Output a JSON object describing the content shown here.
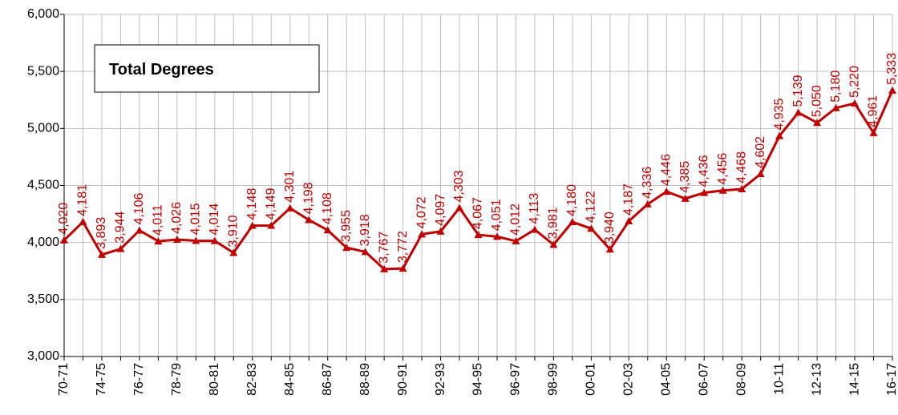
{
  "chart_data": {
    "type": "line",
    "title": "Total Degrees",
    "categories": [
      "70-71",
      null,
      "74-75",
      null,
      "76-77",
      null,
      "78-79",
      null,
      "80-81",
      null,
      "82-83",
      null,
      "84-85",
      null,
      "86-87",
      null,
      "88-89",
      null,
      "90-91",
      null,
      "92-93",
      null,
      "94-95",
      null,
      "96-97",
      null,
      "98-99",
      null,
      "00-01",
      null,
      "02-03",
      null,
      "04-05",
      null,
      "06-07",
      null,
      "08-09",
      null,
      "10-11",
      null,
      "12-13",
      null,
      "14-15",
      null,
      "16-17"
    ],
    "series": [
      {
        "name": "Total Degrees",
        "color": "#c00000",
        "values": [
          4020,
          4181,
          3893,
          3944,
          4106,
          4011,
          4026,
          4015,
          4014,
          3910,
          4148,
          4149,
          4301,
          4198,
          4108,
          3955,
          3918,
          3767,
          3772,
          4072,
          4097,
          4303,
          4067,
          4051,
          4012,
          4113,
          3981,
          4180,
          4122,
          3940,
          4187,
          4336,
          4446,
          4385,
          4436,
          4456,
          4468,
          4602,
          4935,
          5139,
          5050,
          5180,
          5220,
          4961,
          5333
        ],
        "value_labels": [
          "4,020",
          "4,181",
          "3,893",
          "3,944",
          "4,106",
          "4,011",
          "4,026",
          "4,015",
          "4,014",
          "3,910",
          "4,148",
          "4,149",
          "4,301",
          "4,198",
          "4,108",
          "3,955",
          "3,918",
          "3,767",
          "3,772",
          "4,072",
          "4,097",
          "4,303",
          "4,067",
          "4,051",
          "4,012",
          "4,113",
          "3,981",
          "4,180",
          "4,122",
          "3,940",
          "4,187",
          "4,336",
          "4,446",
          "4,385",
          "4,436",
          "4,456",
          "4,468",
          "4,602",
          "4,935",
          "5,139",
          "5,050",
          "5,180",
          "5,220",
          "4,961",
          "5,333"
        ]
      }
    ],
    "ylim": [
      3000,
      6000
    ],
    "yticks": [
      {
        "value": 3000,
        "label": "3,000"
      },
      {
        "value": 3500,
        "label": "3,500"
      },
      {
        "value": 4000,
        "label": "4,000"
      },
      {
        "value": 4500,
        "label": "4,500"
      },
      {
        "value": 5000,
        "label": "5,000"
      },
      {
        "value": 5500,
        "label": "5,500"
      },
      {
        "value": 6000,
        "label": "6,000"
      }
    ],
    "grid": true
  }
}
